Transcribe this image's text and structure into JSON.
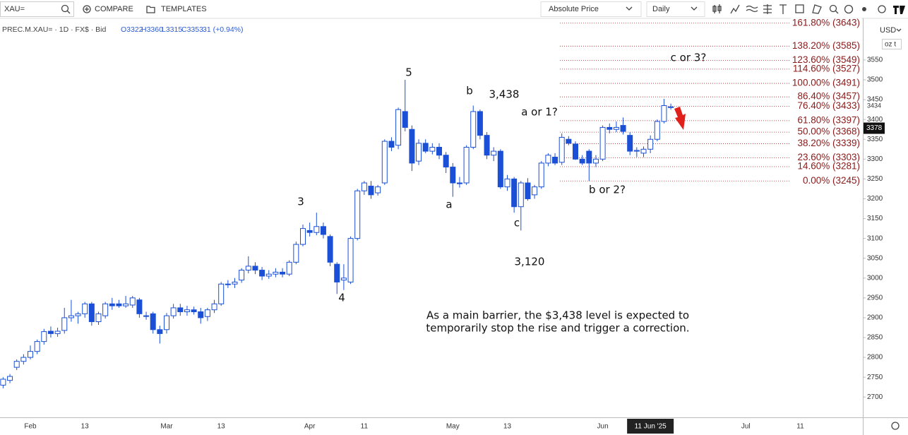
{
  "toolbar": {
    "symbol": "XAU=",
    "compare": "COMPARE",
    "templates": "TEMPLATES",
    "price_mode": "Absolute Price",
    "interval": "Daily"
  },
  "legend": {
    "instrument": "PREC.M.XAU= · 1D · FX$ · Bid",
    "open": "O3322",
    "high": "H3360",
    "low": "L3315",
    "close": "C3353",
    "change": "31 (+0.94%)"
  },
  "annotations": [
    "5",
    "b",
    "3,438",
    "a or 1?",
    "c or 3?",
    "3",
    "a",
    "c",
    "3,120",
    "4",
    "b or 2?"
  ],
  "note": [
    "As a main barrier, the $3,438 level is expected to",
    "temporarily stop the rise and trigger a correction."
  ],
  "chart_data": {
    "type": "candlestick",
    "categories": [
      null,
      null,
      null,
      null,
      "Feb",
      null,
      null,
      null,
      null,
      null,
      null,
      null,
      "13",
      null,
      null,
      null,
      null,
      null,
      null,
      null,
      null,
      null,
      null,
      null,
      "Mar",
      null,
      null,
      null,
      null,
      null,
      null,
      null,
      "13",
      null,
      null,
      null,
      null,
      null,
      null,
      null,
      null,
      null,
      null,
      null,
      null,
      "Apr",
      null,
      null,
      null,
      null,
      null,
      null,
      null,
      "11",
      null,
      null,
      null,
      null,
      null,
      null,
      null,
      null,
      null,
      null,
      null,
      null,
      "May",
      null,
      null,
      null,
      null,
      null,
      null,
      null,
      "13",
      null,
      null,
      null,
      null,
      null,
      null,
      null,
      null,
      null,
      null,
      null,
      null,
      null,
      "Jun",
      null,
      null,
      null,
      null,
      null,
      null,
      "11 Jun '25",
      null,
      null,
      null,
      null,
      null,
      null,
      null,
      null,
      null,
      null,
      null,
      null,
      null,
      "Jul",
      null,
      null,
      null,
      null,
      null,
      null,
      null,
      "11",
      null,
      null,
      null,
      null,
      null,
      null,
      null,
      null,
      null
    ],
    "highlight_category": 95,
    "open": [
      2730,
      2742,
      2775,
      2790,
      2800,
      2815,
      2840,
      2866,
      2860,
      2868,
      2900,
      2905,
      2910,
      2935,
      2890,
      2905,
      2935,
      2935,
      2930,
      2932,
      2945,
      2905,
      2910,
      2870,
      2870,
      2905,
      2925,
      2915,
      2920,
      2915,
      2903,
      2920,
      2935,
      2985,
      2985,
      2995,
      3020,
      3030,
      3020,
      3005,
      3010,
      3015,
      3010,
      3040,
      3085,
      3120,
      3115,
      3130,
      3105,
      3035,
      2995,
      2990,
      3100,
      3220,
      3232,
      3215,
      3240,
      3345,
      3335,
      3420,
      3375,
      3295,
      3340,
      3320,
      3330,
      3310,
      3280,
      3240,
      3240,
      3330,
      3420,
      3360,
      3310,
      3320,
      3230,
      3250,
      3180,
      3240,
      3210,
      3230,
      3290,
      3305,
      3292,
      3350,
      3338,
      3300,
      3320,
      3290,
      3300,
      3380,
      3375,
      3385,
      3360,
      3320,
      3315,
      3325,
      3350,
      3395,
      3430,
      null,
      null,
      null,
      null,
      null,
      null,
      null,
      null,
      null,
      null,
      null,
      null,
      null,
      null,
      null,
      null,
      null,
      null,
      null,
      null,
      null,
      null,
      null,
      null,
      null,
      null,
      null,
      null
    ],
    "high": [
      2750,
      2758,
      2795,
      2808,
      2830,
      2845,
      2872,
      2878,
      2875,
      2925,
      2945,
      2915,
      2940,
      2940,
      2915,
      2940,
      2950,
      2945,
      2955,
      2955,
      2950,
      2915,
      2915,
      2880,
      2912,
      2935,
      2935,
      2930,
      2928,
      2925,
      2925,
      2945,
      2990,
      2995,
      3000,
      3025,
      3055,
      3040,
      3028,
      3020,
      3025,
      3025,
      3045,
      3092,
      3135,
      3140,
      3165,
      3140,
      3110,
      3040,
      3035,
      3105,
      3225,
      3245,
      3245,
      3235,
      3350,
      3355,
      3430,
      3500,
      3385,
      3350,
      3350,
      3340,
      3340,
      3318,
      3290,
      3255,
      3335,
      3435,
      3425,
      3368,
      3330,
      3325,
      3260,
      3255,
      3245,
      3252,
      3235,
      3295,
      3315,
      3315,
      3365,
      3358,
      3345,
      3310,
      3325,
      3310,
      3385,
      3390,
      3395,
      3405,
      3368,
      3330,
      3332,
      3360,
      3400,
      3452,
      3440,
      null,
      null,
      null,
      null,
      null,
      null,
      null,
      null,
      null,
      null,
      null,
      null,
      null,
      null,
      null,
      null,
      null,
      null,
      null,
      null,
      null,
      null,
      null,
      null,
      null,
      null,
      null,
      null
    ],
    "low": [
      2722,
      2735,
      2768,
      2782,
      2795,
      2808,
      2832,
      2850,
      2852,
      2860,
      2890,
      2885,
      2900,
      2880,
      2882,
      2898,
      2920,
      2925,
      2925,
      2925,
      2900,
      2895,
      2860,
      2835,
      2860,
      2898,
      2905,
      2905,
      2908,
      2885,
      2892,
      2912,
      2930,
      2975,
      2975,
      2988,
      3012,
      3010,
      2995,
      2998,
      3002,
      3002,
      3005,
      3035,
      3080,
      3105,
      3108,
      3100,
      3030,
      2960,
      2970,
      2985,
      3095,
      3210,
      3200,
      3208,
      3235,
      3320,
      3325,
      3370,
      3270,
      3285,
      3315,
      3312,
      3300,
      3265,
      3205,
      3228,
      3235,
      3325,
      3350,
      3300,
      3295,
      3225,
      3220,
      3165,
      3120,
      3195,
      3200,
      3225,
      3282,
      3285,
      3285,
      3335,
      3298,
      3285,
      3245,
      3280,
      3295,
      3365,
      3368,
      3362,
      3310,
      3305,
      3305,
      3315,
      3345,
      3390,
      3425,
      null,
      null,
      null,
      null,
      null,
      null,
      null,
      null,
      null,
      null,
      null,
      null,
      null,
      null,
      null,
      null,
      null,
      null,
      null,
      null,
      null,
      null,
      null,
      null,
      null,
      null,
      null,
      null
    ],
    "close": [
      2745,
      2752,
      2790,
      2800,
      2815,
      2840,
      2865,
      2860,
      2866,
      2900,
      2905,
      2910,
      2935,
      2890,
      2910,
      2935,
      2930,
      2930,
      2935,
      2950,
      2910,
      2905,
      2870,
      2860,
      2905,
      2925,
      2915,
      2920,
      2915,
      2900,
      2920,
      2935,
      2985,
      2985,
      2990,
      3020,
      3030,
      3020,
      3005,
      3010,
      3015,
      3010,
      3040,
      3085,
      3125,
      3115,
      3130,
      3110,
      3040,
      2990,
      3000,
      3100,
      3220,
      3240,
      3210,
      3230,
      3345,
      3330,
      3425,
      3380,
      3290,
      3340,
      3320,
      3330,
      3310,
      3280,
      3240,
      3238,
      3330,
      3420,
      3360,
      3310,
      3320,
      3230,
      3250,
      3180,
      3240,
      3200,
      3230,
      3290,
      3310,
      3290,
      3355,
      3340,
      3300,
      3290,
      3290,
      3300,
      3380,
      3375,
      3380,
      3370,
      3320,
      3322,
      3325,
      3350,
      3395,
      3435,
      3432,
      null,
      null,
      null,
      null,
      null,
      null,
      null,
      null,
      null,
      null,
      null,
      null,
      null,
      null,
      null,
      null,
      null,
      null,
      null,
      null,
      null,
      null,
      null,
      null,
      null,
      null,
      null,
      null
    ],
    "up_color": "#ffffff",
    "down_color": "#1a4fd6",
    "wick_color": "#1a4fd6",
    "currency": "USD",
    "unit": "oz t",
    "ylim": [
      2647,
      3655
    ],
    "yticks": [
      2700,
      2750,
      2800,
      2850,
      2900,
      2950,
      3000,
      3050,
      3100,
      3150,
      3200,
      3250,
      3300,
      3350,
      3400,
      3450,
      3500,
      3550
    ],
    "high_marker": 3434,
    "current_price": 3378,
    "fib_color": "#b22222",
    "fib_levels": [
      {
        "value": 3643,
        "label": "161.80% (3643)"
      },
      {
        "value": 3585,
        "label": "138.20% (3585)"
      },
      {
        "value": 3549,
        "label": "123.60% (3549)"
      },
      {
        "value": 3527,
        "label": "114.60% (3527)"
      },
      {
        "value": 3491,
        "label": "100.00% (3491)"
      },
      {
        "value": 3457,
        "label": "86.40% (3457)"
      },
      {
        "value": 3433,
        "label": "76.40% (3433)"
      },
      {
        "value": 3397,
        "label": "61.80% (3397)"
      },
      {
        "value": 3368,
        "label": "50.00% (3368)"
      },
      {
        "value": 3339,
        "label": "38.20% (3339)"
      },
      {
        "value": 3303,
        "label": "23.60% (3303)"
      },
      {
        "value": 3281,
        "label": "14.60% (3281)"
      },
      {
        "value": 3245,
        "label": "0.00% (3245)"
      }
    ]
  }
}
